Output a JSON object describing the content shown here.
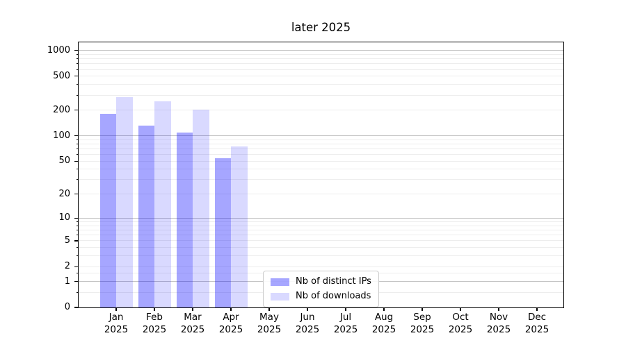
{
  "title": "later 2025",
  "chart_data": {
    "type": "bar",
    "title": "later 2025",
    "y_scale": "log1p",
    "ylim": [
      0,
      1245
    ],
    "y_ticks": [
      0,
      1,
      2,
      5,
      10,
      20,
      50,
      100,
      200,
      500,
      1000
    ],
    "y_major_gridlines": [
      1,
      10,
      100,
      1000
    ],
    "y_minor_gridlines": [
      0.5,
      1.5,
      3,
      4,
      6,
      7,
      8,
      9,
      30,
      40,
      60,
      70,
      80,
      90,
      300,
      400,
      600,
      700,
      800,
      900,
      2,
      5,
      20,
      50,
      200,
      500
    ],
    "grid": true,
    "categories": [
      "Jan 2025",
      "Feb 2025",
      "Mar 2025",
      "Apr 2025",
      "May 2025",
      "Jun 2025",
      "Jul 2025",
      "Aug 2025",
      "Sep 2025",
      "Oct 2025",
      "Nov 2025",
      "Dec 2025"
    ],
    "series": [
      {
        "name": "Nb of distinct IPs",
        "color": "rgba(0,0,255,0.35)",
        "values": [
          180,
          131,
          110,
          54,
          null,
          null,
          null,
          null,
          null,
          null,
          null,
          null
        ]
      },
      {
        "name": "Nb of downloads",
        "color": "rgba(0,0,255,0.15)",
        "values": [
          285,
          255,
          202,
          75,
          null,
          null,
          null,
          null,
          null,
          null,
          null,
          null
        ]
      }
    ],
    "legend_position": "lower center",
    "colors": {
      "grid_major": "#c3c3c3",
      "grid_minor": "#ededed",
      "spine": "#000000",
      "text": "#000000",
      "background": "#ffffff"
    }
  }
}
